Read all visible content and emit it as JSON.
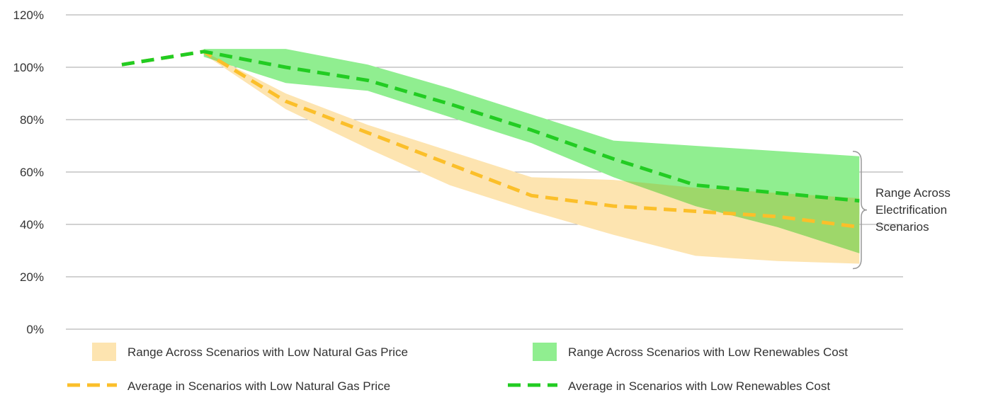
{
  "chart_data": {
    "type": "line",
    "x_points": 10,
    "ylim": [
      0,
      120
    ],
    "yticks": [
      0,
      20,
      40,
      60,
      80,
      100,
      120
    ],
    "ytick_labels": [
      "0%",
      "20%",
      "40%",
      "60%",
      "80%",
      "100%",
      "120%"
    ],
    "grid": true,
    "series": [
      {
        "name": "Range Across Scenarios with Low Natural Gas Price",
        "kind": "band",
        "color": "#fde4b0",
        "upper": [
          null,
          106,
          90,
          78,
          68,
          58,
          57,
          54,
          52,
          50
        ],
        "lower": [
          null,
          105,
          84,
          69,
          55,
          45,
          36,
          28,
          26,
          25
        ]
      },
      {
        "name": "Range Across Scenarios with Low Renewables Cost",
        "kind": "band",
        "color": "#90ee90",
        "upper": [
          null,
          107,
          107,
          101,
          92,
          82,
          72,
          70,
          68,
          66
        ],
        "lower": [
          null,
          104,
          94,
          91,
          81,
          71,
          58,
          47,
          39,
          29
        ]
      },
      {
        "name": "Average in Scenarios with Low Natural Gas Price",
        "kind": "line",
        "color": "#fbbf2a",
        "values": [
          101,
          106,
          87,
          75,
          63,
          51,
          47,
          45,
          43,
          39
        ]
      },
      {
        "name": "Average in Scenarios with Low Renewables Cost",
        "kind": "line",
        "color": "#22cc22",
        "values": [
          101,
          106,
          100,
          95,
          86,
          76,
          65,
          55,
          52,
          49
        ]
      }
    ],
    "annotation": {
      "lines": [
        "Range Across",
        "Electrification",
        "Scenarios"
      ],
      "range": [
        25,
        66
      ]
    },
    "legend_position": "bottom",
    "overlap_color": "#9ed76a"
  }
}
